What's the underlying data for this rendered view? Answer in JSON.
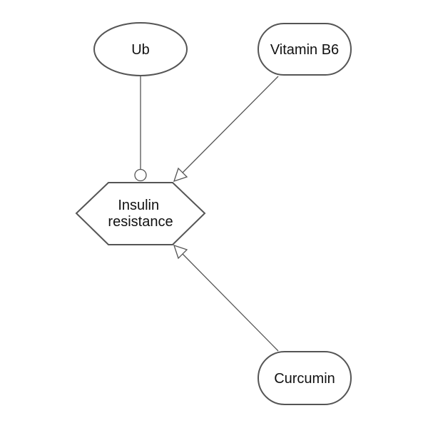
{
  "diagram": {
    "nodes": {
      "ub": {
        "label": "Ub",
        "shape": "ellipse"
      },
      "vitamin_b6": {
        "label": "Vitamin B6",
        "shape": "rounded-rect"
      },
      "insulin_resistance": {
        "label_line1": "Insulin",
        "label_line2": "resistance",
        "shape": "hexagon"
      },
      "curcumin": {
        "label": "Curcumin",
        "shape": "rounded-rect"
      }
    },
    "edges": [
      {
        "from": "Ub",
        "to": "Insulin resistance",
        "head": "circle"
      },
      {
        "from": "Vitamin B6",
        "to": "Insulin resistance",
        "head": "open-triangle"
      },
      {
        "from": "Curcumin",
        "to": "Insulin resistance",
        "head": "open-triangle"
      }
    ],
    "colors": {
      "stroke": "#555555",
      "fill": "#ffffff",
      "text": "#111111"
    }
  }
}
